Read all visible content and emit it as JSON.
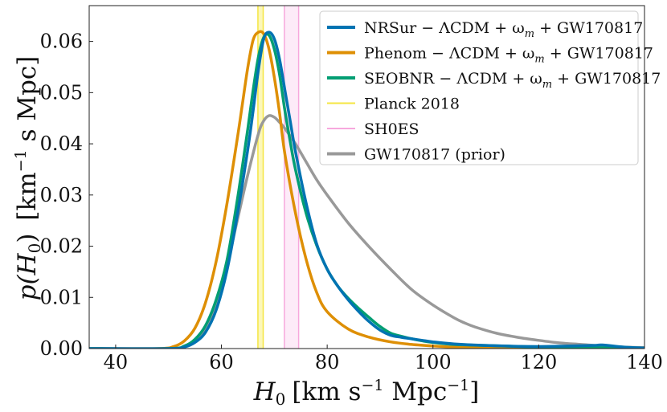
{
  "chart_data": {
    "type": "line",
    "xlabel_main": "H",
    "xlabel_sub": "0",
    "xlabel_units": "[km s",
    "xlabel_exp1": "−1",
    "xlabel_units2": " Mpc",
    "xlabel_exp2": "−1",
    "xlabel_close": "]",
    "ylabel_p": "p(H",
    "ylabel_sub": "0",
    "ylabel_close": ")",
    "ylabel_units": "[km",
    "ylabel_exp": "−1",
    "ylabel_units2": " s Mpc]",
    "xlim": [
      35,
      140
    ],
    "ylim": [
      0,
      0.067
    ],
    "xticks": [
      40,
      60,
      80,
      100,
      120,
      140
    ],
    "yticks": [
      0.0,
      0.01,
      0.02,
      0.03,
      0.04,
      0.05,
      0.06
    ],
    "xtick_labels": [
      "40",
      "60",
      "80",
      "100",
      "120",
      "140"
    ],
    "ytick_labels": [
      "0.00",
      "0.01",
      "0.02",
      "0.03",
      "0.04",
      "0.05",
      "0.06"
    ],
    "legend_position": "top-right",
    "bands": [
      {
        "name": "Planck 2018",
        "center": 67.4,
        "low": 66.9,
        "high": 67.9,
        "color": "#f5e642",
        "fill": "#fbf5a8"
      },
      {
        "name": "SH0ES",
        "center": 73.2,
        "low": 71.9,
        "high": 74.6,
        "color": "#f7a8dd",
        "fill": "#fde6f6"
      }
    ],
    "series": [
      {
        "name": "GW170817 (prior)",
        "color": "#999999",
        "width": 3.5,
        "x": [
          35,
          50,
          53,
          55,
          57,
          59,
          61,
          63,
          65,
          67,
          68,
          69,
          70,
          71,
          72,
          74,
          76,
          78,
          80,
          84,
          88,
          92,
          96,
          100,
          104,
          106,
          108,
          112,
          116,
          120,
          124,
          128,
          132,
          136,
          140
        ],
        "values": [
          0,
          0,
          0.0003,
          0.0015,
          0.004,
          0.009,
          0.016,
          0.025,
          0.034,
          0.042,
          0.0445,
          0.0455,
          0.0452,
          0.0442,
          0.043,
          0.04,
          0.0365,
          0.033,
          0.03,
          0.0245,
          0.0198,
          0.0155,
          0.0115,
          0.0085,
          0.006,
          0.005,
          0.0042,
          0.003,
          0.0022,
          0.0016,
          0.0011,
          0.0008,
          0.0005,
          0.0003,
          0.0002
        ]
      },
      {
        "name": "Phenom − ΛCDM + ωm + GW170817",
        "color": "#de8f05",
        "width": 3.5,
        "x": [
          35,
          48,
          51,
          53,
          55,
          57,
          59,
          61,
          63,
          64,
          65,
          66,
          67,
          68,
          69,
          70,
          71,
          72,
          74,
          76,
          78,
          80,
          84,
          88,
          92,
          96,
          100,
          104,
          110,
          120,
          130,
          140
        ],
        "values": [
          0,
          0,
          0.0004,
          0.0015,
          0.004,
          0.009,
          0.017,
          0.028,
          0.041,
          0.048,
          0.055,
          0.0603,
          0.0618,
          0.0615,
          0.0585,
          0.053,
          0.046,
          0.038,
          0.0265,
          0.0175,
          0.011,
          0.0072,
          0.0038,
          0.0022,
          0.0013,
          0.0008,
          0.0005,
          0.0003,
          0.0002,
          0.0001,
          5e-05,
          0
        ]
      },
      {
        "name": "SEOBNR − ΛCDM + ωm + GW170817",
        "color": "#029e73",
        "width": 3.5,
        "x": [
          35,
          50,
          53,
          55,
          57,
          59,
          61,
          63,
          65,
          66,
          67,
          68,
          69,
          70,
          71,
          72,
          73,
          74,
          76,
          78,
          80,
          82,
          84,
          86,
          88,
          90,
          92,
          94,
          96,
          98,
          100,
          104,
          110,
          120,
          130,
          140
        ],
        "values": [
          0,
          0,
          0.0005,
          0.0018,
          0.0045,
          0.0095,
          0.017,
          0.029,
          0.043,
          0.0505,
          0.057,
          0.0608,
          0.0612,
          0.0585,
          0.0535,
          0.0465,
          0.0405,
          0.035,
          0.0265,
          0.0202,
          0.0155,
          0.0122,
          0.0098,
          0.0078,
          0.006,
          0.0043,
          0.003,
          0.0024,
          0.0019,
          0.0015,
          0.0012,
          0.0008,
          0.0006,
          0.0003,
          0.0002,
          0.0001
        ]
      },
      {
        "name": "NRSur − ΛCDM + ωm + GW170817",
        "color": "#0173b2",
        "width": 3.5,
        "x": [
          35,
          50,
          53,
          55,
          57,
          59,
          61,
          63,
          65,
          66,
          67,
          68,
          69,
          70,
          71,
          72,
          73,
          74,
          76,
          78,
          80,
          82,
          84,
          86,
          88,
          90,
          92,
          94,
          96,
          98,
          100,
          104,
          110,
          120,
          130,
          132,
          136,
          140
        ],
        "values": [
          0,
          0,
          0.0003,
          0.0012,
          0.0032,
          0.0075,
          0.015,
          0.026,
          0.039,
          0.0465,
          0.0545,
          0.0605,
          0.0618,
          0.0605,
          0.0565,
          0.0505,
          0.0445,
          0.0385,
          0.0285,
          0.0205,
          0.0155,
          0.0122,
          0.0095,
          0.0072,
          0.0052,
          0.0036,
          0.0026,
          0.0022,
          0.0019,
          0.0016,
          0.0013,
          0.0009,
          0.0006,
          0.0004,
          0.0006,
          0.0007,
          0.0003,
          0.0001
        ]
      }
    ],
    "legend": [
      {
        "key": "nrsur",
        "color": "#0173b2",
        "width": 4,
        "text": "NRSur − ΛCDM + ω",
        "sub": "m",
        "tail": " + GW170817"
      },
      {
        "key": "phenom",
        "color": "#de8f05",
        "width": 4,
        "text": "Phenom − ΛCDM + ω",
        "sub": "m",
        "tail": " + GW170817"
      },
      {
        "key": "seobnr",
        "color": "#029e73",
        "width": 4,
        "text": "SEOBNR − ΛCDM + ω",
        "sub": "m",
        "tail": " + GW170817"
      },
      {
        "key": "planck",
        "color": "#f5e642",
        "width": 2,
        "text": "Planck 2018",
        "sub": "",
        "tail": ""
      },
      {
        "key": "shoes",
        "color": "#f7a8dd",
        "width": 2,
        "text": "SH0ES",
        "sub": "",
        "tail": ""
      },
      {
        "key": "prior",
        "color": "#999999",
        "width": 4,
        "text": "GW170817 (prior)",
        "sub": "",
        "tail": ""
      }
    ]
  }
}
